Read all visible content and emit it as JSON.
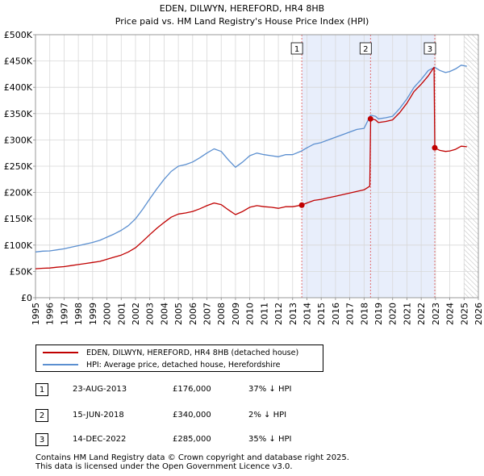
{
  "chart_data": {
    "type": "line",
    "title": "EDEN, DILWYN, HEREFORD, HR4 8HB",
    "subtitle": "Price paid vs. HM Land Registry's House Price Index (HPI)",
    "xlim": [
      1995,
      2026
    ],
    "ylim": [
      0,
      500000
    ],
    "x_ticks": [
      1995,
      1996,
      1997,
      1998,
      1999,
      2000,
      2001,
      2002,
      2003,
      2004,
      2005,
      2006,
      2007,
      2008,
      2009,
      2010,
      2011,
      2012,
      2013,
      2014,
      2015,
      2016,
      2017,
      2018,
      2019,
      2020,
      2021,
      2022,
      2023,
      2024,
      2025,
      2026
    ],
    "y_ticks": [
      {
        "value": 0,
        "label": "£0"
      },
      {
        "value": 50000,
        "label": "£50K"
      },
      {
        "value": 100000,
        "label": "£100K"
      },
      {
        "value": 150000,
        "label": "£150K"
      },
      {
        "value": 200000,
        "label": "£200K"
      },
      {
        "value": 250000,
        "label": "£250K"
      },
      {
        "value": 300000,
        "label": "£300K"
      },
      {
        "value": 350000,
        "label": "£350K"
      },
      {
        "value": 400000,
        "label": "£400K"
      },
      {
        "value": 450000,
        "label": "£450K"
      },
      {
        "value": 500000,
        "label": "£500K"
      }
    ],
    "grid": true,
    "series": [
      {
        "name": "HPI: Average price, detached house, Herefordshire",
        "color": "#5b8fd0",
        "points": [
          [
            1995.0,
            87000
          ],
          [
            1995.5,
            88500
          ],
          [
            1996.0,
            89000
          ],
          [
            1996.5,
            91000
          ],
          [
            1997.0,
            93000
          ],
          [
            1997.5,
            96000
          ],
          [
            1998.0,
            99000
          ],
          [
            1998.5,
            102000
          ],
          [
            1999.0,
            105000
          ],
          [
            1999.5,
            109000
          ],
          [
            2000.0,
            115000
          ],
          [
            2000.5,
            121000
          ],
          [
            2001.0,
            128000
          ],
          [
            2001.5,
            137000
          ],
          [
            2002.0,
            150000
          ],
          [
            2002.5,
            168000
          ],
          [
            2003.0,
            188000
          ],
          [
            2003.5,
            207000
          ],
          [
            2004.0,
            225000
          ],
          [
            2004.5,
            240000
          ],
          [
            2005.0,
            250000
          ],
          [
            2005.5,
            253000
          ],
          [
            2006.0,
            258000
          ],
          [
            2006.5,
            266000
          ],
          [
            2007.0,
            275000
          ],
          [
            2007.5,
            283000
          ],
          [
            2008.0,
            278000
          ],
          [
            2008.5,
            262000
          ],
          [
            2009.0,
            248000
          ],
          [
            2009.5,
            258000
          ],
          [
            2010.0,
            270000
          ],
          [
            2010.5,
            275000
          ],
          [
            2011.0,
            272000
          ],
          [
            2011.5,
            270000
          ],
          [
            2012.0,
            268000
          ],
          [
            2012.5,
            272000
          ],
          [
            2013.0,
            272000
          ],
          [
            2013.63,
            279000
          ],
          [
            2014.0,
            285000
          ],
          [
            2014.5,
            292000
          ],
          [
            2015.0,
            295000
          ],
          [
            2015.5,
            300000
          ],
          [
            2016.0,
            305000
          ],
          [
            2016.5,
            310000
          ],
          [
            2017.0,
            315000
          ],
          [
            2017.5,
            320000
          ],
          [
            2018.0,
            322000
          ],
          [
            2018.45,
            347000
          ],
          [
            2018.8,
            345000
          ],
          [
            2019.0,
            340000
          ],
          [
            2019.5,
            342000
          ],
          [
            2020.0,
            345000
          ],
          [
            2020.5,
            360000
          ],
          [
            2021.0,
            378000
          ],
          [
            2021.5,
            400000
          ],
          [
            2022.0,
            415000
          ],
          [
            2022.5,
            432000
          ],
          [
            2022.95,
            438000
          ],
          [
            2023.3,
            432000
          ],
          [
            2023.7,
            428000
          ],
          [
            2024.0,
            430000
          ],
          [
            2024.4,
            435000
          ],
          [
            2024.8,
            442000
          ],
          [
            2025.2,
            440000
          ]
        ]
      },
      {
        "name": "EDEN, DILWYN, HEREFORD, HR4 8HB (detached house)",
        "color": "#c00000",
        "points": [
          [
            1995.0,
            55000
          ],
          [
            1995.5,
            56000
          ],
          [
            1996.0,
            56500
          ],
          [
            1996.5,
            58000
          ],
          [
            1997.0,
            59000
          ],
          [
            1997.5,
            61000
          ],
          [
            1998.0,
            63000
          ],
          [
            1998.5,
            65000
          ],
          [
            1999.0,
            67000
          ],
          [
            1999.5,
            69000
          ],
          [
            2000.0,
            73000
          ],
          [
            2000.5,
            77000
          ],
          [
            2001.0,
            81000
          ],
          [
            2001.5,
            87000
          ],
          [
            2002.0,
            95000
          ],
          [
            2002.5,
            107000
          ],
          [
            2003.0,
            120000
          ],
          [
            2003.5,
            132000
          ],
          [
            2004.0,
            143000
          ],
          [
            2004.5,
            153000
          ],
          [
            2005.0,
            159000
          ],
          [
            2005.5,
            161000
          ],
          [
            2006.0,
            164000
          ],
          [
            2006.5,
            169000
          ],
          [
            2007.0,
            175000
          ],
          [
            2007.5,
            180000
          ],
          [
            2008.0,
            177000
          ],
          [
            2008.5,
            167000
          ],
          [
            2009.0,
            158000
          ],
          [
            2009.5,
            164000
          ],
          [
            2010.0,
            172000
          ],
          [
            2010.5,
            175000
          ],
          [
            2011.0,
            173000
          ],
          [
            2011.5,
            172000
          ],
          [
            2012.0,
            170000
          ],
          [
            2012.5,
            173000
          ],
          [
            2013.0,
            173000
          ],
          [
            2013.64,
            176000
          ],
          [
            2014.0,
            180000
          ],
          [
            2014.5,
            185000
          ],
          [
            2015.0,
            187000
          ],
          [
            2015.5,
            190000
          ],
          [
            2016.0,
            193000
          ],
          [
            2016.5,
            196000
          ],
          [
            2017.0,
            199000
          ],
          [
            2017.5,
            202000
          ],
          [
            2018.0,
            205000
          ],
          [
            2018.4,
            212000
          ],
          [
            2018.46,
            340000
          ],
          [
            2018.8,
            338000
          ],
          [
            2019.0,
            333000
          ],
          [
            2019.5,
            335000
          ],
          [
            2020.0,
            338000
          ],
          [
            2020.5,
            352000
          ],
          [
            2021.0,
            370000
          ],
          [
            2021.5,
            392000
          ],
          [
            2022.0,
            406000
          ],
          [
            2022.5,
            422000
          ],
          [
            2022.9,
            438000
          ],
          [
            2022.95,
            285000
          ],
          [
            2023.3,
            280000
          ],
          [
            2023.7,
            278000
          ],
          [
            2024.0,
            279000
          ],
          [
            2024.4,
            282000
          ],
          [
            2024.8,
            288000
          ],
          [
            2025.2,
            287000
          ]
        ]
      }
    ],
    "sales": [
      {
        "number": "1",
        "x": 2013.64,
        "y": 176000,
        "date": "23-AUG-2013",
        "price": "£176,000",
        "hpi": "37% ↓ HPI"
      },
      {
        "number": "2",
        "x": 2018.45,
        "y": 340000,
        "date": "15-JUN-2018",
        "price": "£340,000",
        "hpi": "2% ↓ HPI"
      },
      {
        "number": "3",
        "x": 2022.95,
        "y": 285000,
        "date": "14-DEC-2022",
        "price": "£285,000",
        "hpi": "35% ↓ HPI"
      }
    ],
    "shaded_region": {
      "from": 2013.64,
      "to": 2022.95,
      "color": "#e8eefb"
    },
    "future_region": {
      "from": 2025.0,
      "to": 2026.0
    }
  },
  "legend": {
    "property_label": "EDEN, DILWYN, HEREFORD, HR4 8HB (detached house)",
    "hpi_label": "HPI: Average price, detached house, Herefordshire",
    "property_color": "#c00000",
    "hpi_color": "#5b8fd0"
  },
  "footer": {
    "line1": "Contains HM Land Registry data © Crown copyright and database right 2025.",
    "line2": "This data is licensed under the Open Government Licence v3.0."
  }
}
